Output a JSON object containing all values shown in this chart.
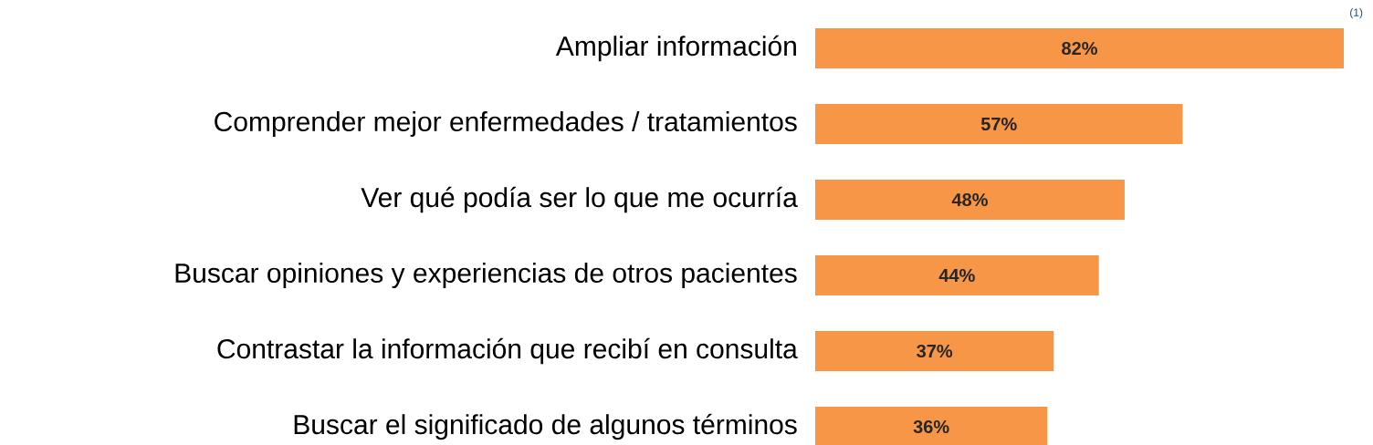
{
  "chart_data": {
    "type": "bar",
    "orientation": "horizontal",
    "categories": [
      "Ampliar información",
      "Comprender mejor enfermedades / tratamientos",
      "Ver qué podía ser lo que me ocurría",
      "Buscar opiniones y experiencias de otros pacientes",
      "Contrastar la información que recibí en consulta",
      "Buscar el significado de algunos términos"
    ],
    "values": [
      82,
      57,
      48,
      44,
      37,
      36
    ],
    "value_labels": [
      "82%",
      "57%",
      "48%",
      "44%",
      "37%",
      "36%"
    ],
    "color": "#f79646",
    "annotations": [
      "(1)"
    ]
  }
}
